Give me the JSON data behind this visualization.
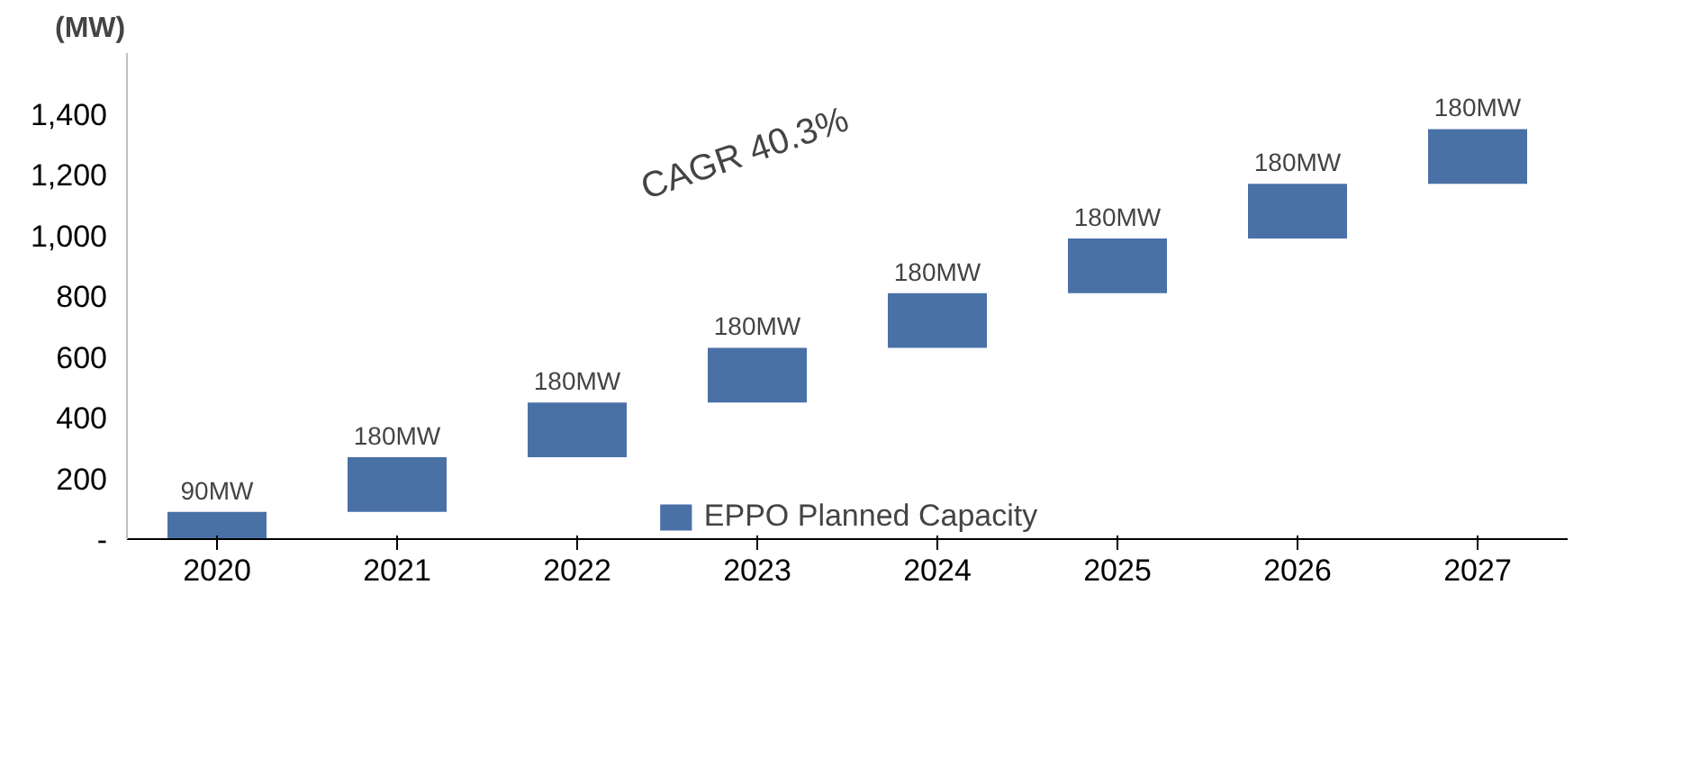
{
  "chart_data": {
    "type": "bar",
    "ylabel": "(MW)",
    "categories": [
      "2020",
      "2021",
      "2022",
      "2023",
      "2024",
      "2025",
      "2026",
      "2027"
    ],
    "series": [
      {
        "name": "EPPO Planned Capacity",
        "color": "#4a71a6",
        "values": [
          90,
          180,
          180,
          180,
          180,
          180,
          180,
          180
        ],
        "base": [
          0,
          90,
          270,
          450,
          630,
          810,
          990,
          1170
        ],
        "value_labels": [
          "90MW",
          "180MW",
          "180MW",
          "180MW",
          "180MW",
          "180MW",
          "180MW",
          "180MW"
        ]
      }
    ],
    "ylim": [
      0,
      1600
    ],
    "yticks": [
      {
        "value": 0,
        "label": "-"
      },
      {
        "value": 200,
        "label": "200"
      },
      {
        "value": 400,
        "label": "400"
      },
      {
        "value": 600,
        "label": "600"
      },
      {
        "value": 800,
        "label": "800"
      },
      {
        "value": 1000,
        "label": "1,000"
      },
      {
        "value": 1200,
        "label": "1,200"
      },
      {
        "value": 1400,
        "label": "1,400"
      }
    ],
    "annotations": [
      "CAGR 40.3%"
    ],
    "grid": false,
    "legend": "bottom"
  }
}
